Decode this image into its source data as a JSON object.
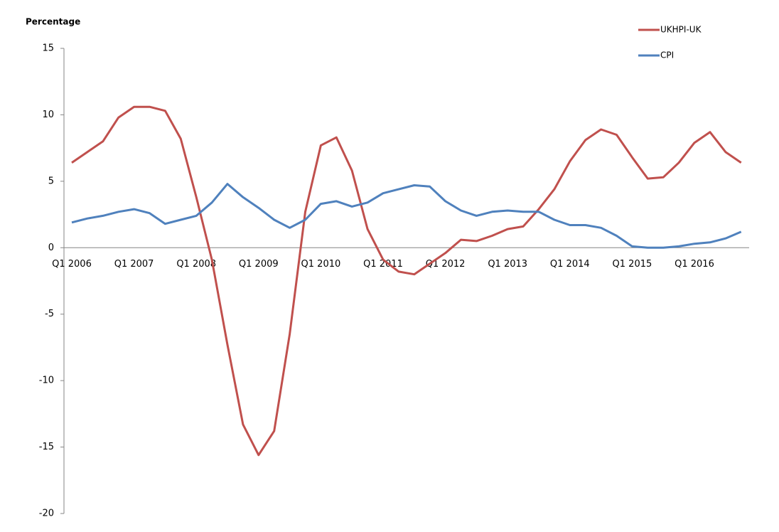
{
  "chart_data": {
    "type": "line",
    "y_label": "Percentage",
    "categories": [
      "Q1 2006",
      null,
      null,
      null,
      "Q1 2007",
      null,
      null,
      null,
      "Q1 2008",
      null,
      null,
      null,
      "Q1 2009",
      null,
      null,
      null,
      "Q1 2010",
      null,
      null,
      null,
      "Q1 2011",
      null,
      null,
      null,
      "Q1 2012",
      null,
      null,
      null,
      "Q1 2013",
      null,
      null,
      null,
      "Q1 2014",
      null,
      null,
      null,
      "Q1 2015",
      null,
      null,
      null,
      "Q1 2016",
      null,
      null,
      null
    ],
    "series": [
      {
        "name": "UKHPI-UK",
        "color": "#c0504d",
        "values": [
          6.4,
          7.2,
          8.0,
          9.8,
          10.6,
          10.6,
          10.3,
          8.2,
          3.8,
          -0.9,
          -7.3,
          -13.3,
          -15.6,
          -13.8,
          -6.5,
          2.7,
          7.7,
          8.3,
          5.8,
          1.4,
          -0.9,
          -1.8,
          -2.0,
          -1.2,
          -0.4,
          0.6,
          0.5,
          0.9,
          1.4,
          1.6,
          2.9,
          4.4,
          6.5,
          8.1,
          8.9,
          8.5,
          6.8,
          5.2,
          5.3,
          6.4,
          7.9,
          8.7,
          7.2,
          6.4
        ]
      },
      {
        "name": "CPI",
        "color": "#4f81bd",
        "values": [
          1.9,
          2.2,
          2.4,
          2.7,
          2.9,
          2.6,
          1.8,
          2.1,
          2.4,
          3.4,
          4.8,
          3.8,
          3.0,
          2.1,
          1.5,
          2.1,
          3.3,
          3.5,
          3.1,
          3.4,
          4.1,
          4.4,
          4.7,
          4.6,
          3.5,
          2.8,
          2.4,
          2.7,
          2.8,
          2.7,
          2.7,
          2.1,
          1.7,
          1.7,
          1.5,
          0.9,
          0.1,
          0.0,
          0.0,
          0.1,
          0.3,
          0.4,
          0.7,
          1.2
        ]
      }
    ],
    "ylim": [
      -20,
      15
    ],
    "yticks": [
      15,
      10,
      5,
      0,
      -5,
      -10,
      -15,
      -20
    ],
    "legend": "top-right"
  }
}
